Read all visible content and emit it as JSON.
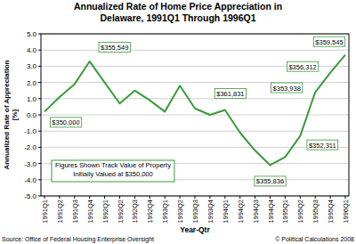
{
  "chart_data": {
    "type": "line",
    "title": [
      "Annualized Rate of Home Price Appreciation in",
      "Delaware, 1991Q1 Through 1996Q1"
    ],
    "ylabel": [
      "Annualized Rate of Appreciation",
      "[%]"
    ],
    "xlabel": "Year-Qtr",
    "source": "Source: Office of Federal Housing Enterprise Oversight",
    "credit": "© Political Calculations 2008",
    "annotation_text": [
      "Figures Shown Track Value of Property",
      "Initially Valued at $350,000"
    ],
    "categories": [
      "1991Q1",
      "1991Q2",
      "1991Q3",
      "1991Q4",
      "1992Q1",
      "1992Q2",
      "1992Q3",
      "1992Q4",
      "1993Q1",
      "1993Q2",
      "1993Q3",
      "1993Q4",
      "1994Q1",
      "1994Q2",
      "1994Q3",
      "1994Q4",
      "1995Q1",
      "1995Q2",
      "1995Q3",
      "1995Q4",
      "1996Q1"
    ],
    "values": [
      0.2,
      1.1,
      1.9,
      3.3,
      2.0,
      0.7,
      1.5,
      0.9,
      0.2,
      1.8,
      0.4,
      0.0,
      0.3,
      -1.1,
      -2.2,
      -3.1,
      -2.6,
      -1.3,
      1.4,
      2.6,
      3.7
    ],
    "color": "#3a9a3a",
    "line_style": "solid",
    "marker": "none",
    "annotations": [
      {
        "category": "1991Q1",
        "text": "$350,000"
      },
      {
        "category": "1991Q4",
        "text": "$355,549"
      },
      {
        "category": "1993Q4",
        "text": "$361,831"
      },
      {
        "category": "1994Q4",
        "text": "$355,836"
      },
      {
        "category": "1995Q2",
        "text": "$352,311"
      },
      {
        "category": "1995Q3",
        "text": "$353,938"
      },
      {
        "category": "1995Q4",
        "text": "$356,312"
      },
      {
        "category": "1996Q1",
        "text": "$359,545"
      }
    ],
    "ylim": [
      -5,
      5
    ],
    "yticks": [
      {
        "value": 5,
        "label": "5.0"
      },
      {
        "value": 4,
        "label": "4.0"
      },
      {
        "value": 3,
        "label": "3.0"
      },
      {
        "value": 2,
        "label": "2.0"
      },
      {
        "value": 1,
        "label": "1.0"
      },
      {
        "value": 0,
        "label": "0.0"
      },
      {
        "value": -1,
        "label": "-1.0"
      },
      {
        "value": -2,
        "label": "-2.0"
      },
      {
        "value": -3,
        "label": "-3.0"
      },
      {
        "value": -4,
        "label": "-4.0"
      },
      {
        "value": -5,
        "label": "-5.0"
      }
    ],
    "grid": true
  }
}
